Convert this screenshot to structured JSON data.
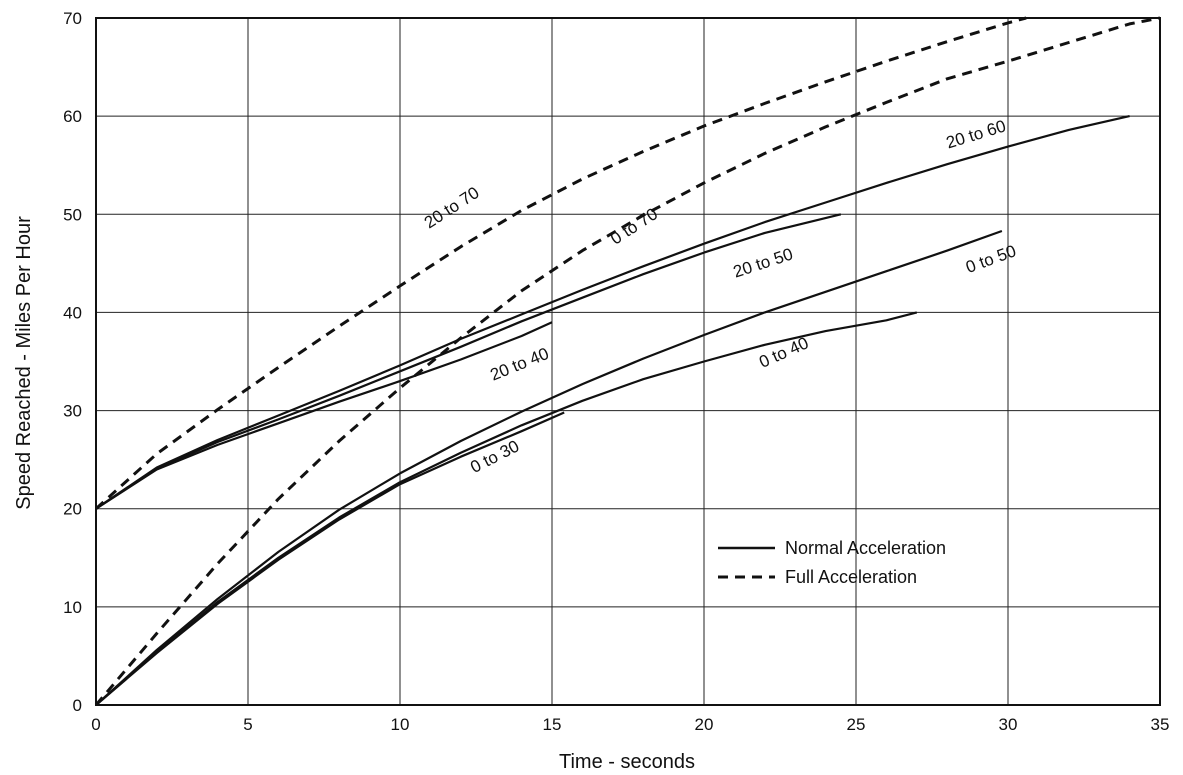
{
  "chart_data": {
    "type": "line",
    "xlabel": "Time - seconds",
    "ylabel": "Speed Reached - Miles Per Hour",
    "xlim": [
      0,
      35
    ],
    "ylim": [
      0,
      70
    ],
    "x_ticks": [
      0,
      5,
      10,
      15,
      20,
      25,
      30,
      35
    ],
    "x_tick_labels": [
      "0",
      "5",
      "10",
      "15",
      "20",
      "25",
      "30",
      "35"
    ],
    "y_ticks": [
      0,
      10,
      20,
      30,
      40,
      50,
      60,
      70
    ],
    "y_tick_labels": [
      "0",
      "10",
      "20",
      "30",
      "40",
      "50",
      "60",
      "70"
    ],
    "grid": true,
    "legend_position": "lower-right",
    "legend": [
      {
        "label": "Normal Acceleration",
        "style": "solid"
      },
      {
        "label": "Full Acceleration",
        "style": "dashed"
      }
    ],
    "series": [
      {
        "name": "0 to 30",
        "style": "solid",
        "label_at": [
          13.2,
          24.8
        ],
        "label_angle": -27,
        "points": [
          [
            0,
            0
          ],
          [
            2,
            5.3
          ],
          [
            4,
            10.3
          ],
          [
            6,
            14.8
          ],
          [
            8,
            18.9
          ],
          [
            10,
            22.5
          ],
          [
            12,
            25.3
          ],
          [
            14,
            27.9
          ],
          [
            15.4,
            29.8
          ]
        ]
      },
      {
        "name": "0 to 40",
        "style": "solid",
        "label_at": [
          22.7,
          35.4
        ],
        "label_angle": -24,
        "points": [
          [
            0,
            0
          ],
          [
            2,
            5.4
          ],
          [
            4,
            10.5
          ],
          [
            6,
            15.0
          ],
          [
            8,
            19.1
          ],
          [
            10,
            22.7
          ],
          [
            12,
            25.7
          ],
          [
            14,
            28.5
          ],
          [
            16,
            31.0
          ],
          [
            18,
            33.2
          ],
          [
            20,
            35.0
          ],
          [
            22,
            36.7
          ],
          [
            24,
            38.1
          ],
          [
            26,
            39.2
          ],
          [
            27,
            40.0
          ]
        ]
      },
      {
        "name": "0 to 50",
        "style": "solid",
        "label_at": [
          29.5,
          44.9
        ],
        "label_angle": -20,
        "points": [
          [
            0,
            0
          ],
          [
            2,
            5.6
          ],
          [
            4,
            10.8
          ],
          [
            6,
            15.6
          ],
          [
            8,
            19.9
          ],
          [
            10,
            23.6
          ],
          [
            12,
            26.9
          ],
          [
            14,
            29.9
          ],
          [
            16,
            32.7
          ],
          [
            18,
            35.3
          ],
          [
            20,
            37.7
          ],
          [
            22,
            40.0
          ],
          [
            24,
            42.1
          ],
          [
            26,
            44.2
          ],
          [
            28,
            46.3
          ],
          [
            29.8,
            48.3
          ]
        ]
      },
      {
        "name": "20 to 40",
        "style": "solid",
        "label_at": [
          14.0,
          34.2
        ],
        "label_angle": -22,
        "points": [
          [
            0,
            20
          ],
          [
            2,
            24.0
          ],
          [
            4,
            26.5
          ],
          [
            6,
            28.7
          ],
          [
            8,
            30.9
          ],
          [
            10,
            33.0
          ],
          [
            12,
            35.2
          ],
          [
            14,
            37.6
          ],
          [
            15.0,
            39.0
          ]
        ]
      },
      {
        "name": "20 to 50",
        "style": "solid",
        "label_at": [
          22.0,
          44.5
        ],
        "label_angle": -18,
        "points": [
          [
            0,
            20
          ],
          [
            2,
            24.1
          ],
          [
            4,
            26.8
          ],
          [
            6,
            29.1
          ],
          [
            8,
            31.5
          ],
          [
            10,
            34.0
          ],
          [
            12,
            36.5
          ],
          [
            14,
            39.1
          ],
          [
            16,
            41.5
          ],
          [
            18,
            43.9
          ],
          [
            20,
            46.1
          ],
          [
            22,
            48.1
          ],
          [
            24.5,
            50.0
          ]
        ]
      },
      {
        "name": "20 to 60",
        "style": "solid",
        "label_at": [
          29.0,
          57.6
        ],
        "label_angle": -17,
        "points": [
          [
            0,
            20
          ],
          [
            2,
            24.2
          ],
          [
            4,
            27.0
          ],
          [
            6,
            29.5
          ],
          [
            8,
            32.0
          ],
          [
            10,
            34.6
          ],
          [
            12,
            37.3
          ],
          [
            14,
            39.8
          ],
          [
            16,
            42.3
          ],
          [
            18,
            44.7
          ],
          [
            20,
            47.0
          ],
          [
            22,
            49.2
          ],
          [
            24,
            51.2
          ],
          [
            26,
            53.2
          ],
          [
            28,
            55.1
          ],
          [
            30,
            56.9
          ],
          [
            32,
            58.6
          ],
          [
            34,
            60.0
          ]
        ]
      },
      {
        "name": "0 to 70",
        "style": "dashed",
        "label_at": [
          17.8,
          48.3
        ],
        "label_angle": -33,
        "points": [
          [
            0,
            0
          ],
          [
            2,
            7.3
          ],
          [
            4,
            14.4
          ],
          [
            6,
            21.0
          ],
          [
            8,
            26.9
          ],
          [
            10,
            32.3
          ],
          [
            12,
            37.4
          ],
          [
            14,
            42.2
          ],
          [
            16,
            46.3
          ],
          [
            18,
            49.9
          ],
          [
            20,
            53.2
          ],
          [
            22,
            56.2
          ],
          [
            24,
            58.9
          ],
          [
            26,
            61.4
          ],
          [
            28,
            63.8
          ],
          [
            30,
            65.6
          ],
          [
            32,
            67.5
          ],
          [
            34,
            69.4
          ],
          [
            35,
            70.0
          ]
        ]
      },
      {
        "name": "20 to 70",
        "style": "dashed",
        "label_at": [
          11.8,
          50.2
        ],
        "label_angle": -33,
        "points": [
          [
            0,
            20
          ],
          [
            2,
            25.6
          ],
          [
            4,
            30.1
          ],
          [
            6,
            34.4
          ],
          [
            8,
            38.6
          ],
          [
            10,
            42.7
          ],
          [
            12,
            46.7
          ],
          [
            14,
            50.4
          ],
          [
            16,
            53.6
          ],
          [
            18,
            56.4
          ],
          [
            20,
            59.0
          ],
          [
            22,
            61.3
          ],
          [
            24,
            63.5
          ],
          [
            26,
            65.6
          ],
          [
            28,
            67.6
          ],
          [
            30,
            69.5
          ],
          [
            30.6,
            70.0
          ]
        ]
      }
    ]
  }
}
